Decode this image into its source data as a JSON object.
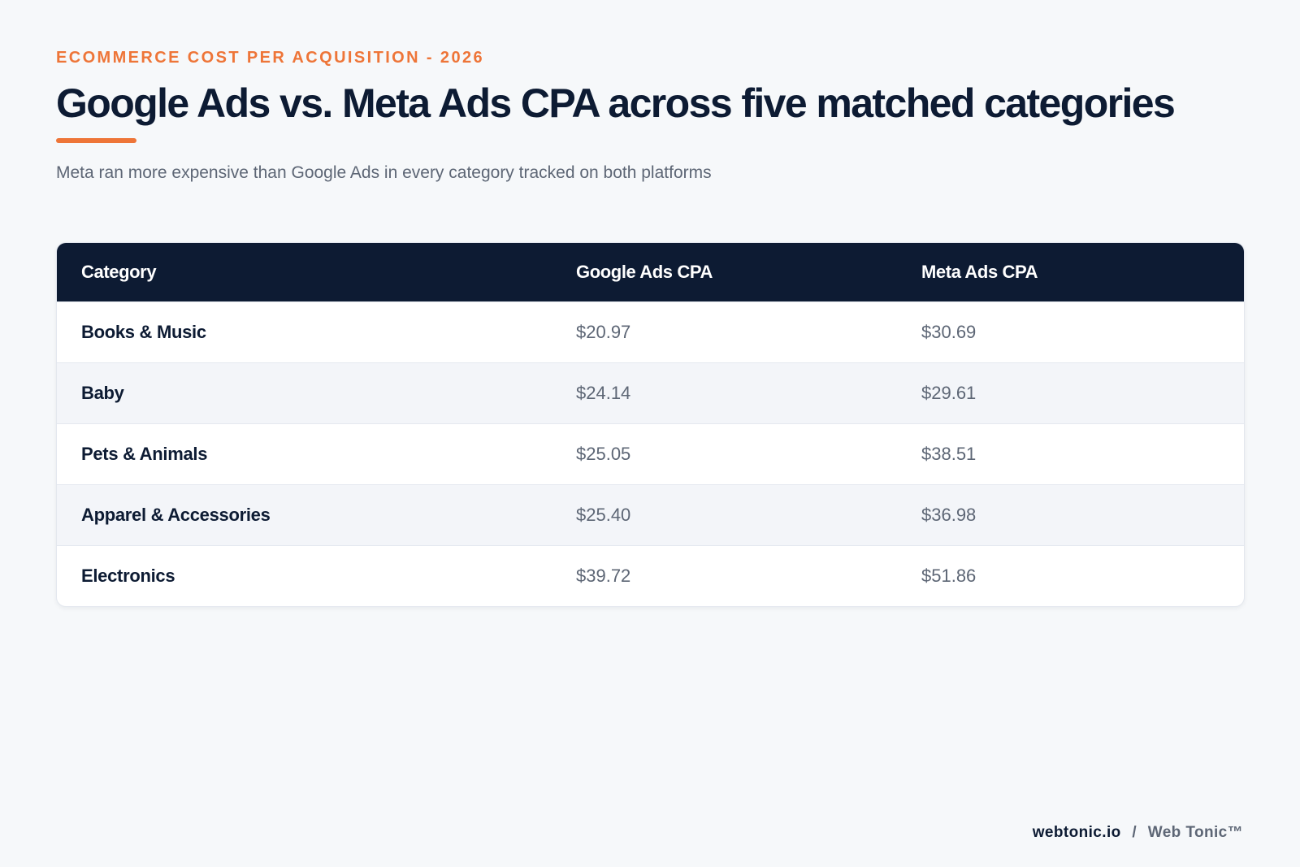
{
  "header": {
    "eyebrow": "ECOMMERCE COST PER ACQUISITION - 2026",
    "title": "Google Ads vs. Meta Ads CPA across five matched categories",
    "subtitle": "Meta ran more expensive than Google Ads in every category tracked on both platforms"
  },
  "colors": {
    "accent": "#ee7538",
    "navy": "#0d1b33",
    "muted": "#5d6675"
  },
  "chart_data": {
    "type": "table",
    "columns": [
      "Category",
      "Google Ads CPA",
      "Meta Ads CPA"
    ],
    "rows": [
      {
        "category": "Books & Music",
        "google": "$20.97",
        "meta": "$30.69"
      },
      {
        "category": "Baby",
        "google": "$24.14",
        "meta": "$29.61"
      },
      {
        "category": "Pets & Animals",
        "google": "$25.05",
        "meta": "$38.51"
      },
      {
        "category": "Apparel & Accessories",
        "google": "$25.40",
        "meta": "$36.98"
      },
      {
        "category": "Electronics",
        "google": "$39.72",
        "meta": "$51.86"
      }
    ]
  },
  "footer": {
    "site": "webtonic.io",
    "separator": "/",
    "brand": "Web Tonic™"
  }
}
